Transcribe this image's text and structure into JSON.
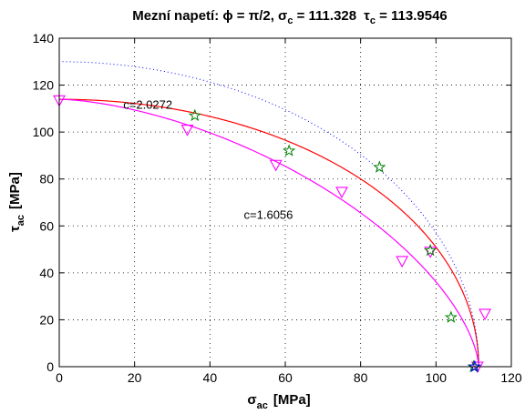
{
  "chart_data": {
    "type": "scatter",
    "title": "Mezní napetí: ϕ = π/2, σ_c = 111.328 τ_c = 113.9546",
    "title_parts": {
      "prefix": "Mezní napetí: ",
      "phi_label": "ϕ = π/2, ",
      "sigma_symbol": "σ",
      "sigma_sub": "c",
      "sigma_value": " = 111.328",
      "tau_symbol": "τ",
      "tau_sub": "c",
      "tau_value": " = 113.9546"
    },
    "xlabel": {
      "symbol": "σ",
      "sub": "ac",
      "unit": "[MPa]"
    },
    "ylabel": {
      "symbol": "τ",
      "sub": "ac",
      "unit": "[MPa]"
    },
    "xlim": [
      0,
      120
    ],
    "ylim": [
      0,
      140
    ],
    "xticks": [
      "0",
      "20",
      "40",
      "60",
      "80",
      "100",
      "120"
    ],
    "yticks": [
      "0",
      "20",
      "40",
      "60",
      "80",
      "100",
      "120",
      "140"
    ],
    "grid": true,
    "annotations": [
      {
        "text": "c=2.0272",
        "x": 17,
        "y": 110
      },
      {
        "text": "c=1.6056",
        "x": 49,
        "y": 63
      }
    ],
    "curves": [
      {
        "label": "c=2.0272",
        "color": "#ff0000",
        "style": "solid",
        "sigma_c": 111.328,
        "tau_c": 113.9546,
        "exponent": 2.0272
      },
      {
        "label": "c=1.6056",
        "color": "#ff00ff",
        "style": "solid",
        "sigma_c": 111.328,
        "tau_c": 113.9546,
        "exponent": 1.6056
      },
      {
        "label": "",
        "color": "#0000ff",
        "style": "dotted",
        "sigma_c": 111.328,
        "tau_c": 130,
        "exponent": 2
      }
    ],
    "series": [
      {
        "marker": "triangle-down",
        "color": "#ff00ff",
        "points": [
          [
            0,
            113.5
          ],
          [
            34,
            101
          ],
          [
            57.5,
            86
          ],
          [
            75,
            74.5
          ],
          [
            91,
            45
          ],
          [
            98.5,
            49
          ],
          [
            113,
            22.5
          ],
          [
            111,
            0
          ]
        ]
      },
      {
        "marker": "star",
        "color": "#008000",
        "points": [
          [
            36,
            107
          ],
          [
            61,
            92
          ],
          [
            85,
            85
          ],
          [
            98.5,
            49.5
          ],
          [
            104,
            21
          ],
          [
            110,
            0
          ]
        ]
      },
      {
        "marker": "star",
        "color": "#0000ff",
        "points": [
          [
            110.3,
            0
          ]
        ]
      }
    ]
  }
}
